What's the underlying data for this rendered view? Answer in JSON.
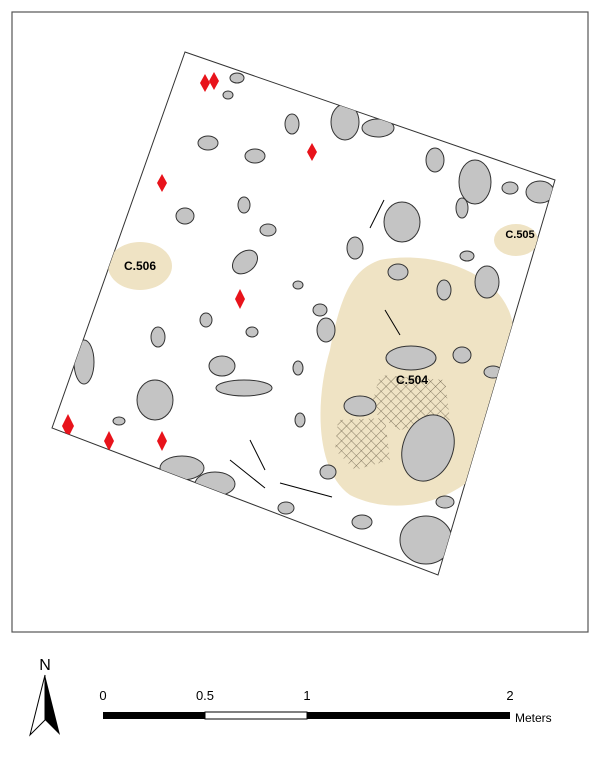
{
  "map": {
    "features": [
      {
        "label": "C.506"
      },
      {
        "label": "C.505"
      },
      {
        "label": "C.504"
      }
    ],
    "north_arrow": {
      "label": "N"
    },
    "scale_bar": {
      "labels": [
        "0",
        "0.5",
        "1",
        "2"
      ],
      "unit": "Meters"
    }
  }
}
